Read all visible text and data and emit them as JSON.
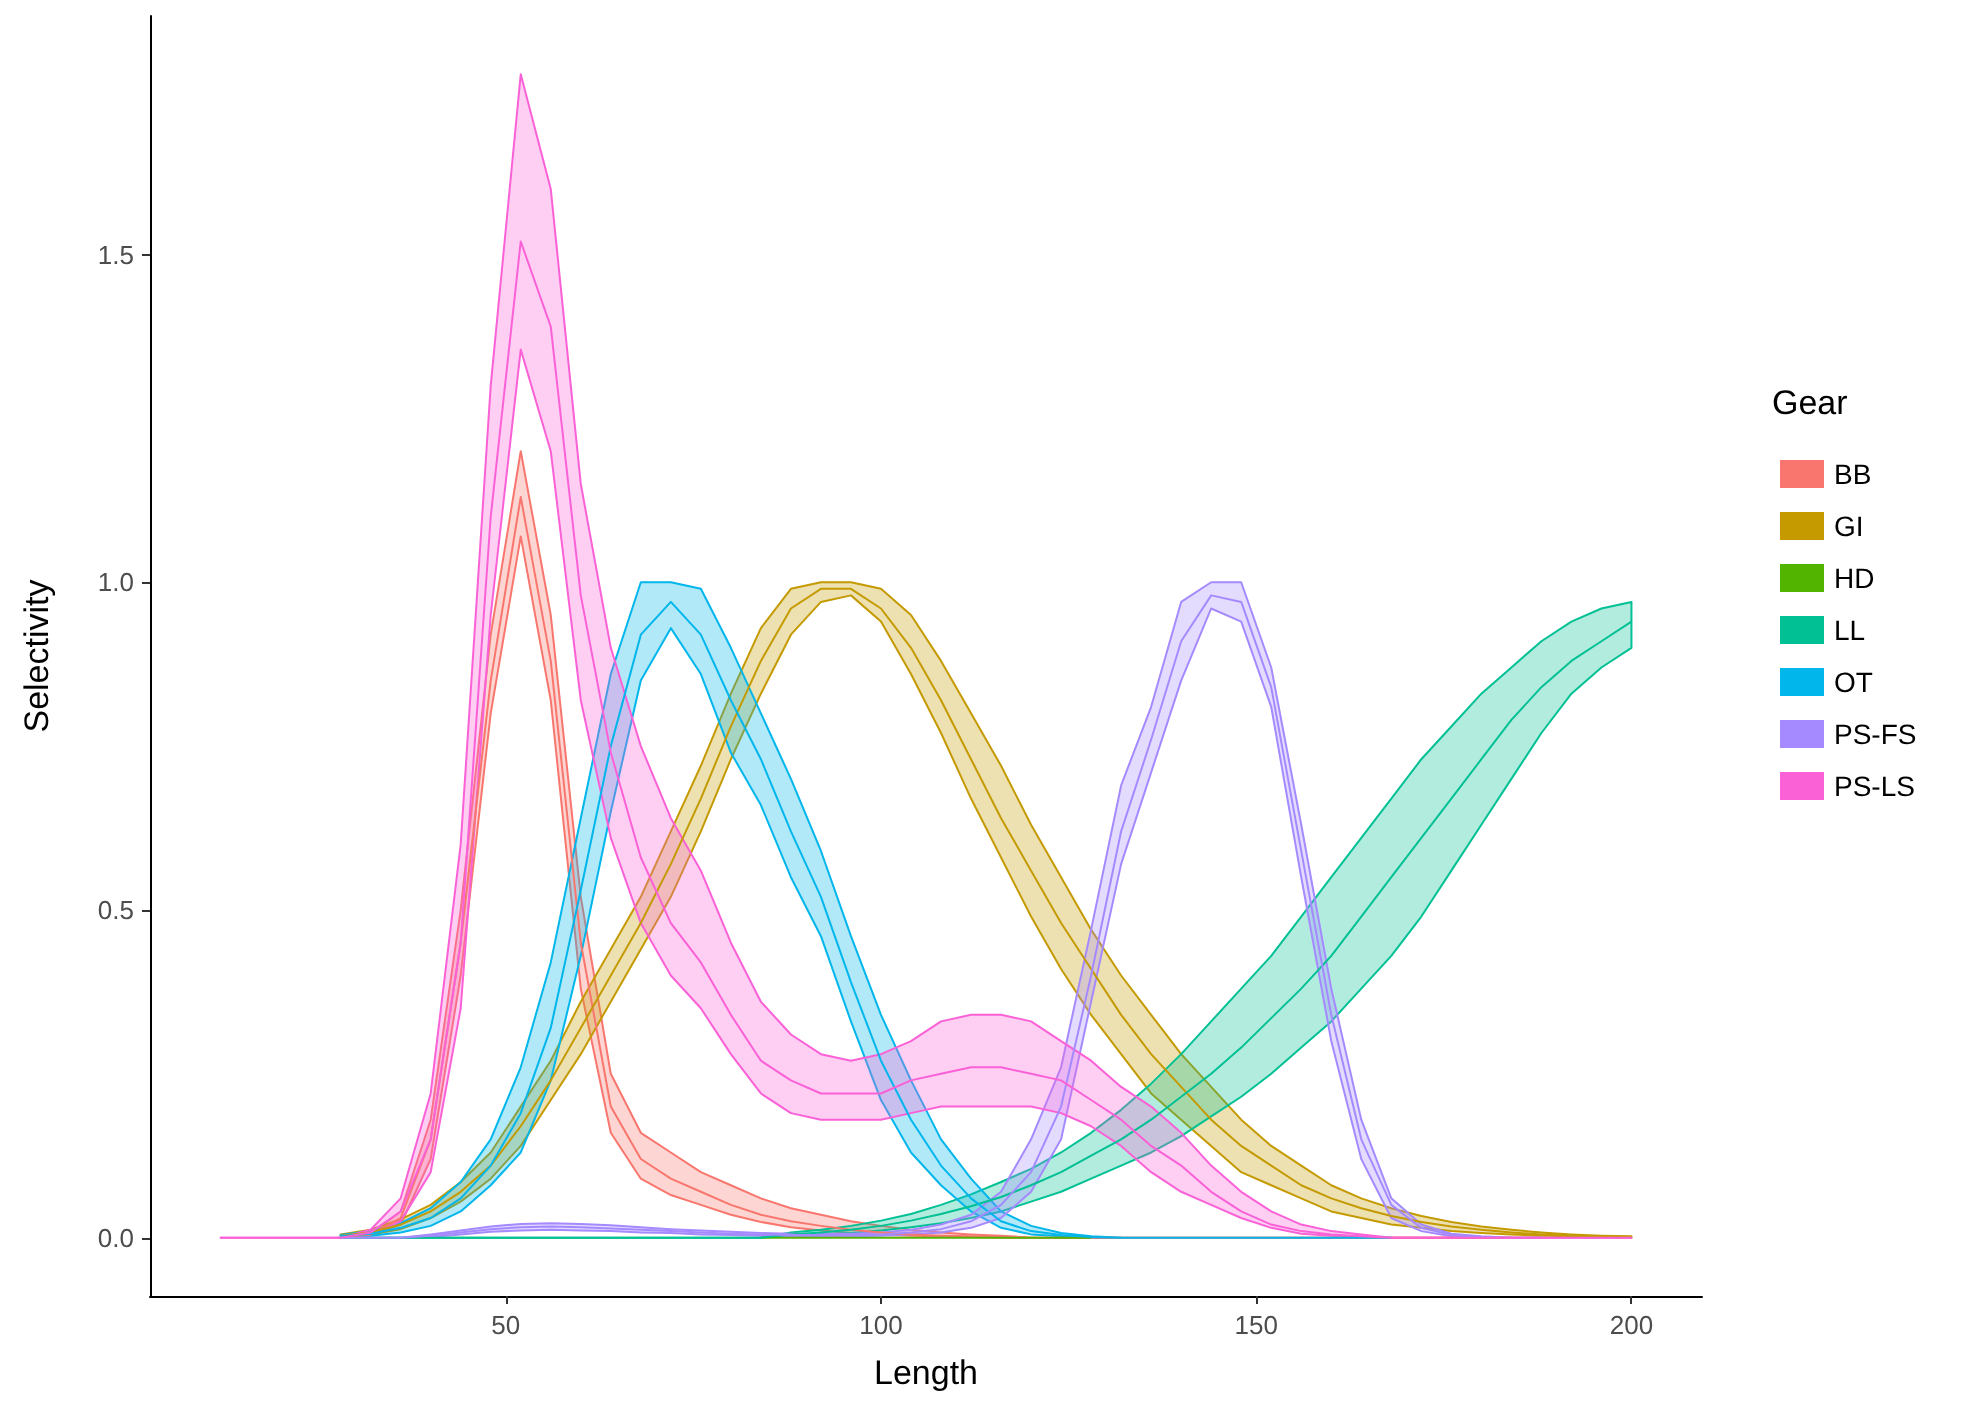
{
  "chart_data": {
    "type": "line",
    "xlabel": "Length",
    "ylabel": "Selectivity",
    "legend_title": "Gear",
    "legend": "right",
    "grid": false,
    "marker": "none",
    "line_style": "solid",
    "xlim": [
      2.6,
      209.4
    ],
    "xticks": [
      50,
      100,
      150,
      200
    ],
    "ylim": [
      -0.089,
      1.864
    ],
    "yticks": [
      {
        "value": 0,
        "label": "0.0"
      },
      {
        "value": 0.5,
        "label": "0.5"
      },
      {
        "value": 1,
        "label": "1.0"
      },
      {
        "value": 1.5,
        "label": "1.5"
      }
    ],
    "x": [
      12,
      16,
      20,
      24,
      28,
      32,
      36,
      40,
      44,
      48,
      52,
      56,
      60,
      64,
      68,
      72,
      76,
      80,
      84,
      88,
      92,
      96,
      100,
      104,
      108,
      112,
      116,
      120,
      124,
      128,
      132,
      136,
      140,
      144,
      148,
      152,
      156,
      160,
      164,
      168,
      172,
      176,
      180,
      184,
      188,
      192,
      196,
      200
    ],
    "series": [
      {
        "name": "BB",
        "color": "#f8766d",
        "values": [
          null,
          null,
          null,
          null,
          0,
          0.005,
          0.03,
          0.15,
          0.45,
          0.85,
          1.13,
          0.88,
          0.45,
          0.2,
          0.12,
          0.09,
          0.07,
          0.05,
          0.035,
          0.025,
          0.018,
          0.012,
          0.008,
          0.005,
          0.003,
          0.002,
          0.001,
          0,
          0,
          0,
          0,
          0,
          0,
          0,
          0,
          0,
          0,
          0,
          0,
          0,
          0,
          0,
          0,
          0,
          0,
          null,
          null,
          null
        ],
        "upper": [
          null,
          null,
          null,
          null,
          0,
          0.006,
          0.04,
          0.18,
          0.5,
          0.92,
          1.2,
          0.95,
          0.52,
          0.25,
          0.16,
          0.13,
          0.1,
          0.08,
          0.06,
          0.045,
          0.035,
          0.025,
          0.018,
          0.012,
          0.008,
          0.005,
          0.003,
          0,
          0,
          0,
          0,
          0,
          0,
          0,
          0,
          0,
          0,
          0,
          0,
          0,
          0,
          0,
          0,
          0,
          0,
          null,
          null,
          null
        ],
        "lower": [
          null,
          null,
          null,
          null,
          0,
          0.004,
          0.02,
          0.12,
          0.4,
          0.8,
          1.07,
          0.82,
          0.38,
          0.16,
          0.09,
          0.065,
          0.05,
          0.035,
          0.024,
          0.016,
          0.011,
          0.007,
          0.004,
          0.003,
          0.002,
          0.001,
          0,
          0,
          0,
          0,
          0,
          0,
          0,
          0,
          0,
          0,
          0,
          0,
          0,
          0,
          0,
          0,
          0,
          0,
          0,
          null,
          null,
          null
        ]
      },
      {
        "name": "GI",
        "color": "#c49a00",
        "values": [
          null,
          null,
          null,
          null,
          0.003,
          0.008,
          0.02,
          0.04,
          0.07,
          0.11,
          0.17,
          0.24,
          0.32,
          0.4,
          0.48,
          0.57,
          0.67,
          0.78,
          0.88,
          0.96,
          0.99,
          0.99,
          0.96,
          0.9,
          0.82,
          0.73,
          0.64,
          0.56,
          0.48,
          0.41,
          0.34,
          0.28,
          0.23,
          0.18,
          0.14,
          0.11,
          0.08,
          0.06,
          0.045,
          0.033,
          0.024,
          0.017,
          0.012,
          0.008,
          0.005,
          0.003,
          0.002,
          0.001
        ],
        "upper": [
          null,
          null,
          null,
          null,
          0.005,
          0.012,
          0.028,
          0.05,
          0.085,
          0.13,
          0.2,
          0.27,
          0.36,
          0.44,
          0.52,
          0.62,
          0.72,
          0.83,
          0.93,
          0.99,
          1.0,
          1.0,
          0.99,
          0.95,
          0.88,
          0.8,
          0.72,
          0.63,
          0.55,
          0.47,
          0.4,
          0.34,
          0.28,
          0.23,
          0.18,
          0.14,
          0.11,
          0.08,
          0.06,
          0.045,
          0.033,
          0.024,
          0.017,
          0.012,
          0.008,
          0.005,
          0.003,
          0.002
        ],
        "lower": [
          null,
          null,
          null,
          null,
          0.001,
          0.005,
          0.013,
          0.03,
          0.055,
          0.09,
          0.14,
          0.21,
          0.28,
          0.36,
          0.44,
          0.52,
          0.62,
          0.73,
          0.83,
          0.92,
          0.97,
          0.98,
          0.94,
          0.86,
          0.77,
          0.67,
          0.58,
          0.49,
          0.41,
          0.34,
          0.28,
          0.22,
          0.18,
          0.14,
          0.1,
          0.08,
          0.06,
          0.04,
          0.03,
          0.02,
          0.015,
          0.01,
          0.007,
          0.005,
          0.003,
          0.002,
          0.001,
          0
        ]
      },
      {
        "name": "HD",
        "color": "#53b400",
        "values": [
          null,
          null,
          null,
          null,
          null,
          null,
          null,
          null,
          null,
          null,
          null,
          null,
          null,
          null,
          null,
          null,
          null,
          null,
          0,
          0,
          0,
          0,
          0,
          0,
          0,
          0,
          0,
          0,
          0,
          0,
          null,
          null,
          null,
          null,
          null,
          null,
          null,
          null,
          null,
          null,
          null,
          null,
          null,
          null,
          null,
          null,
          null,
          null
        ]
      },
      {
        "name": "LL",
        "color": "#00c094",
        "values": [
          null,
          null,
          null,
          null,
          0,
          0,
          0,
          0,
          0,
          0,
          0,
          0,
          0,
          0,
          0,
          0,
          0,
          0,
          0,
          0.005,
          0.008,
          0.012,
          0.018,
          0.026,
          0.036,
          0.048,
          0.062,
          0.08,
          0.1,
          0.125,
          0.15,
          0.18,
          0.215,
          0.25,
          0.29,
          0.335,
          0.38,
          0.43,
          0.49,
          0.55,
          0.61,
          0.67,
          0.73,
          0.79,
          0.84,
          0.88,
          0.91,
          0.94
        ],
        "upper": [
          null,
          null,
          null,
          null,
          0,
          0,
          0,
          0,
          0,
          0,
          0,
          0,
          0,
          0,
          0,
          0,
          0,
          0,
          0,
          0.008,
          0.012,
          0.018,
          0.026,
          0.036,
          0.05,
          0.066,
          0.085,
          0.105,
          0.13,
          0.16,
          0.195,
          0.235,
          0.28,
          0.33,
          0.38,
          0.43,
          0.49,
          0.55,
          0.61,
          0.67,
          0.73,
          0.78,
          0.83,
          0.87,
          0.91,
          0.94,
          0.96,
          0.97
        ],
        "lower": [
          null,
          null,
          null,
          null,
          0,
          0,
          0,
          0,
          0,
          0,
          0,
          0,
          0,
          0,
          0,
          0,
          0,
          0,
          0,
          0.003,
          0.005,
          0.007,
          0.011,
          0.016,
          0.022,
          0.03,
          0.04,
          0.055,
          0.07,
          0.09,
          0.11,
          0.13,
          0.155,
          0.185,
          0.215,
          0.25,
          0.29,
          0.33,
          0.38,
          0.43,
          0.49,
          0.56,
          0.63,
          0.7,
          0.77,
          0.83,
          0.87,
          0.9
        ]
      },
      {
        "name": "OT",
        "color": "#00b6eb",
        "values": [
          null,
          null,
          null,
          null,
          0.002,
          0.006,
          0.015,
          0.03,
          0.06,
          0.11,
          0.19,
          0.32,
          0.53,
          0.75,
          0.92,
          0.97,
          0.92,
          0.82,
          0.73,
          0.62,
          0.52,
          0.39,
          0.27,
          0.18,
          0.11,
          0.06,
          0.025,
          0.01,
          0.004,
          0.001,
          0,
          0,
          0,
          0,
          0,
          0,
          0,
          0,
          0,
          0,
          null,
          null,
          null,
          null,
          null,
          null,
          null,
          null
        ],
        "upper": [
          null,
          null,
          null,
          null,
          0.004,
          0.01,
          0.022,
          0.045,
          0.085,
          0.15,
          0.26,
          0.42,
          0.64,
          0.86,
          1.0,
          1.0,
          0.99,
          0.9,
          0.8,
          0.7,
          0.59,
          0.46,
          0.34,
          0.24,
          0.15,
          0.09,
          0.04,
          0.018,
          0.007,
          0.002,
          0,
          null,
          null,
          null,
          null,
          null,
          null,
          null,
          null,
          null,
          null,
          null,
          null,
          null,
          null,
          null,
          null,
          null
        ],
        "lower": [
          null,
          null,
          null,
          null,
          0.001,
          0.003,
          0.008,
          0.018,
          0.04,
          0.08,
          0.13,
          0.24,
          0.43,
          0.65,
          0.85,
          0.93,
          0.86,
          0.74,
          0.66,
          0.55,
          0.46,
          0.33,
          0.21,
          0.13,
          0.08,
          0.04,
          0.015,
          0.005,
          0.002,
          0,
          0,
          null,
          null,
          null,
          null,
          null,
          null,
          null,
          null,
          null,
          null,
          null,
          null,
          null,
          null,
          null,
          null,
          null
        ]
      },
      {
        "name": "PS-FS",
        "color": "#a58aff",
        "values": [
          null,
          null,
          null,
          null,
          0,
          0,
          0,
          0.003,
          0.008,
          0.013,
          0.016,
          0.017,
          0.016,
          0.014,
          0.012,
          0.01,
          0.008,
          0.006,
          0.005,
          0.004,
          0.004,
          0.004,
          0.005,
          0.008,
          0.013,
          0.025,
          0.05,
          0.1,
          0.2,
          0.4,
          0.62,
          0.76,
          0.91,
          0.98,
          0.97,
          0.84,
          0.59,
          0.34,
          0.15,
          0.05,
          0.015,
          0.004,
          0.001,
          0,
          0,
          null,
          null,
          null
        ],
        "upper": [
          null,
          null,
          null,
          null,
          0,
          0,
          0,
          0.005,
          0.011,
          0.017,
          0.021,
          0.022,
          0.021,
          0.019,
          0.016,
          0.013,
          0.011,
          0.009,
          0.007,
          0.006,
          0.006,
          0.006,
          0.008,
          0.012,
          0.02,
          0.035,
          0.07,
          0.15,
          0.26,
          0.47,
          0.69,
          0.81,
          0.97,
          1.0,
          1.0,
          0.87,
          0.63,
          0.38,
          0.18,
          0.06,
          0.02,
          0.006,
          0.002,
          0,
          null,
          null,
          null,
          null
        ],
        "lower": [
          null,
          null,
          null,
          null,
          0,
          0,
          0,
          0.001,
          0.005,
          0.009,
          0.011,
          0.012,
          0.011,
          0.01,
          0.008,
          0.007,
          0.005,
          0.004,
          0.003,
          0.002,
          0.002,
          0.002,
          0.003,
          0.005,
          0.008,
          0.015,
          0.03,
          0.07,
          0.15,
          0.36,
          0.57,
          0.71,
          0.85,
          0.96,
          0.94,
          0.81,
          0.55,
          0.3,
          0.12,
          0.03,
          0.01,
          0.002,
          0,
          0,
          null,
          null,
          null,
          null
        ]
      },
      {
        "name": "PS-LS",
        "color": "#fb61d7",
        "values": [
          0,
          0,
          0,
          0,
          0,
          0.008,
          0.04,
          0.15,
          0.45,
          1.1,
          1.52,
          1.39,
          0.98,
          0.74,
          0.58,
          0.48,
          0.42,
          0.34,
          0.27,
          0.24,
          0.22,
          0.22,
          0.22,
          0.24,
          0.25,
          0.26,
          0.26,
          0.25,
          0.24,
          0.21,
          0.18,
          0.14,
          0.11,
          0.07,
          0.04,
          0.02,
          0.01,
          0.005,
          0.002,
          0,
          0,
          0,
          0,
          0,
          0,
          0,
          0,
          0
        ],
        "upper": [
          0,
          0,
          0,
          0,
          0,
          0.012,
          0.06,
          0.22,
          0.6,
          1.3,
          1.775,
          1.6,
          1.15,
          0.9,
          0.75,
          0.64,
          0.56,
          0.45,
          0.36,
          0.31,
          0.28,
          0.27,
          0.28,
          0.3,
          0.33,
          0.34,
          0.34,
          0.33,
          0.3,
          0.27,
          0.23,
          0.2,
          0.16,
          0.11,
          0.07,
          0.04,
          0.02,
          0.01,
          0.005,
          0,
          0,
          0,
          0,
          0,
          0,
          0,
          0,
          0
        ],
        "lower": [
          0,
          0,
          0,
          0,
          0,
          0.005,
          0.025,
          0.1,
          0.35,
          0.95,
          1.355,
          1.2,
          0.82,
          0.61,
          0.48,
          0.4,
          0.35,
          0.28,
          0.22,
          0.19,
          0.18,
          0.18,
          0.18,
          0.19,
          0.2,
          0.2,
          0.2,
          0.2,
          0.19,
          0.17,
          0.14,
          0.1,
          0.07,
          0.05,
          0.03,
          0.015,
          0.006,
          0.003,
          0.001,
          0,
          0,
          0,
          0,
          0,
          0,
          0,
          0,
          0
        ]
      }
    ]
  }
}
